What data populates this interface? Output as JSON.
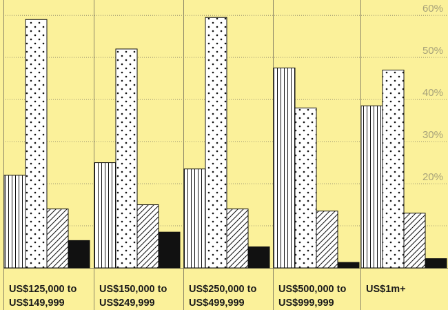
{
  "chart_data": {
    "type": "bar",
    "categories": [
      [
        "US$125,000 to",
        "US$149,999"
      ],
      [
        "US$150,000 to",
        "US$249,999"
      ],
      [
        "US$250,000 to",
        "US$499,999"
      ],
      [
        "US$500,000 to",
        "US$999,999"
      ],
      [
        "US$1m+"
      ]
    ],
    "series": [
      {
        "pattern": "vertical-lines",
        "values": [
          22,
          25,
          23.5,
          47.5,
          38.5
        ]
      },
      {
        "pattern": "dots",
        "values": [
          59,
          52,
          59.5,
          38,
          47
        ]
      },
      {
        "pattern": "diagonal-lines",
        "values": [
          14,
          15,
          14,
          13.5,
          13
        ]
      },
      {
        "pattern": "solid-black",
        "values": [
          6.5,
          8.5,
          5,
          1.3,
          2.2
        ]
      }
    ],
    "y_ticks": [
      "20%",
      "30%",
      "40%",
      "50%",
      "60%"
    ],
    "y_tick_values": [
      20,
      30,
      40,
      50,
      60
    ],
    "ylim": [
      0,
      62
    ],
    "grid": true,
    "colors": {
      "background": "#fbf19a",
      "bar_fill": "#ffffff",
      "ink": "#111111",
      "tick_text": "#a7a27a"
    }
  }
}
